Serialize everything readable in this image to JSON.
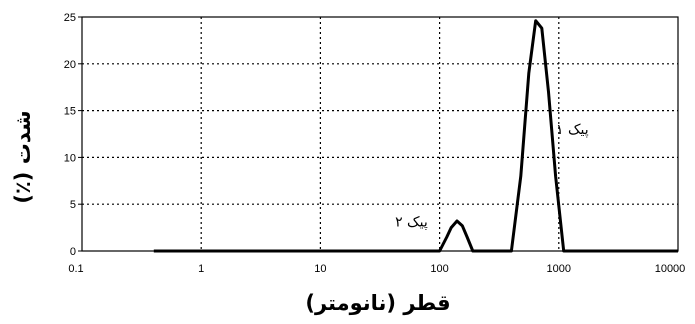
{
  "chart_data": {
    "type": "line",
    "xlabel": "قطر (نانومتر)",
    "ylabel": "شدت (٪)",
    "xscale": "log",
    "xlim": [
      0.1,
      10000
    ],
    "ylim": [
      0,
      25
    ],
    "grid": true,
    "x_ticks": [
      "0.1",
      "1",
      "10",
      "100",
      "1000",
      "10000"
    ],
    "y_ticks": [
      "0",
      "5",
      "10",
      "15",
      "20",
      "25"
    ],
    "series": [
      {
        "x": [
          0.4,
          100,
          115,
          125,
          140,
          155,
          170,
          190,
          400,
          480,
          560,
          640,
          720,
          820,
          940,
          1100,
          10000
        ],
        "y": [
          0,
          0,
          1.5,
          2.5,
          3.2,
          2.7,
          1.5,
          0,
          0,
          8,
          19,
          24.6,
          23.8,
          17,
          8,
          0,
          0
        ]
      }
    ],
    "annotations": [
      {
        "text": "پیک ۱",
        "x": 1300,
        "y": 12.5
      },
      {
        "text": "پیک ۲",
        "x": 58,
        "y": 2.6
      }
    ]
  }
}
